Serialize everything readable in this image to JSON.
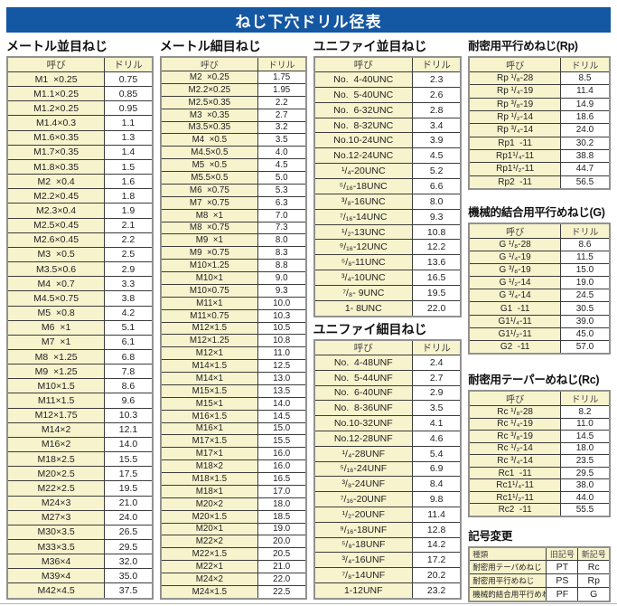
{
  "title": "ねじ下穴ドリル径表",
  "labels": {
    "name_col": "呼び",
    "drill_col": "ドリル"
  },
  "colors": {
    "title_bar_blue": "#1457a2",
    "cell_cream": "#f7f3cd",
    "grid_line": "#3c3c3c",
    "outer_border": "#919191"
  },
  "sections": {
    "metric_coarse": {
      "heading": "メートル並目ねじ",
      "rows": [
        [
          "M1  ×0.25",
          "0.75"
        ],
        [
          "M1.1×0.25",
          "0.85"
        ],
        [
          "M1.2×0.25",
          "0.95"
        ],
        [
          "M1.4×0.3",
          "1.1"
        ],
        [
          "M1.6×0.35",
          "1.3"
        ],
        [
          "M1.7×0.35",
          "1.4"
        ],
        [
          "M1.8×0.35",
          "1.5"
        ],
        [
          "M2  ×0.4",
          "1.6"
        ],
        [
          "M2.2×0.45",
          "1.8"
        ],
        [
          "M2.3×0.4",
          "1.9"
        ],
        [
          "M2.5×0.45",
          "2.1"
        ],
        [
          "M2.6×0.45",
          "2.2"
        ],
        [
          "M3  ×0.5",
          "2.5"
        ],
        [
          "M3.5×0.6",
          "2.9"
        ],
        [
          "M4  ×0.7",
          "3.3"
        ],
        [
          "M4.5×0.75",
          "3.8"
        ],
        [
          "M5  ×0.8",
          "4.2"
        ],
        [
          "M6  ×1",
          "5.1"
        ],
        [
          "M7  ×1",
          "6.1"
        ],
        [
          "M8  ×1.25",
          "6.8"
        ],
        [
          "M9  ×1.25",
          "7.8"
        ],
        [
          "M10×1.5",
          "8.6"
        ],
        [
          "M11×1.5",
          "9.6"
        ],
        [
          "M12×1.75",
          "10.3"
        ],
        [
          "M14×2",
          "12.1"
        ],
        [
          "M16×2",
          "14.0"
        ],
        [
          "M18×2.5",
          "15.5"
        ],
        [
          "M20×2.5",
          "17.5"
        ],
        [
          "M22×2.5",
          "19.5"
        ],
        [
          "M24×3",
          "21.0"
        ],
        [
          "M27×3",
          "24.0"
        ],
        [
          "M30×3.5",
          "26.5"
        ],
        [
          "M33×3.5",
          "29.5"
        ],
        [
          "M36×4",
          "32.0"
        ],
        [
          "M39×4",
          "35.0"
        ],
        [
          "M42×4.5",
          "37.5"
        ]
      ]
    },
    "metric_fine": {
      "heading": "メートル細目ねじ",
      "rows": [
        [
          "M2  ×0.25",
          "1.75"
        ],
        [
          "M2.2×0.25",
          "1.95"
        ],
        [
          "M2.5×0.35",
          "2.2"
        ],
        [
          "M3  ×0.35",
          "2.7"
        ],
        [
          "M3.5×0.35",
          "3.2"
        ],
        [
          "M4  ×0.5",
          "3.5"
        ],
        [
          "M4.5×0.5",
          "4.0"
        ],
        [
          "M5  ×0.5",
          "4.5"
        ],
        [
          "M5.5×0.5",
          "5.0"
        ],
        [
          "M6  ×0.75",
          "5.3"
        ],
        [
          "M7  ×0.75",
          "6.3"
        ],
        [
          "M8  ×1",
          "7.0"
        ],
        [
          "M8  ×0.75",
          "7.3"
        ],
        [
          "M9  ×1",
          "8.0"
        ],
        [
          "M9  ×0.75",
          "8.3"
        ],
        [
          "M10×1.25",
          "8.8"
        ],
        [
          "M10×1",
          "9.0"
        ],
        [
          "M10×0.75",
          "9.3"
        ],
        [
          "M11×1",
          "10.0"
        ],
        [
          "M11×0.75",
          "10.3"
        ],
        [
          "M12×1.5",
          "10.5"
        ],
        [
          "M12×1.25",
          "10.8"
        ],
        [
          "M12×1",
          "11.0"
        ],
        [
          "M14×1.5",
          "12.5"
        ],
        [
          "M14×1",
          "13.0"
        ],
        [
          "M15×1.5",
          "13.5"
        ],
        [
          "M15×1",
          "14.0"
        ],
        [
          "M16×1.5",
          "14.5"
        ],
        [
          "M16×1",
          "15.0"
        ],
        [
          "M17×1.5",
          "15.5"
        ],
        [
          "M17×1",
          "16.0"
        ],
        [
          "M18×2",
          "16.0"
        ],
        [
          "M18×1.5",
          "16.5"
        ],
        [
          "M18×1",
          "17.0"
        ],
        [
          "M20×2",
          "18.0"
        ],
        [
          "M20×1.5",
          "18.5"
        ],
        [
          "M20×1",
          "19.0"
        ],
        [
          "M22×2",
          "20.0"
        ],
        [
          "M22×1.5",
          "20.5"
        ],
        [
          "M22×1",
          "21.0"
        ],
        [
          "M24×2",
          "22.0"
        ],
        [
          "M24×1.5",
          "22.5"
        ]
      ]
    },
    "unified_coarse": {
      "heading": "ユニファイ並目ねじ",
      "rows": [
        [
          "No.  4-40UNC",
          "2.3"
        ],
        [
          "No.  5-40UNC",
          "2.6"
        ],
        [
          "No.  6-32UNC",
          "2.8"
        ],
        [
          "No.  8-32UNC",
          "3.4"
        ],
        [
          "No.10-24UNC",
          "3.9"
        ],
        [
          "No.12-24UNC",
          "4.5"
        ],
        [
          "¹/₄-20UNC",
          "5.2"
        ],
        [
          "⁵/₁₆-18UNC",
          "6.6"
        ],
        [
          "³/₈-16UNC",
          "8.0"
        ],
        [
          "⁷/₁₆-14UNC",
          "9.3"
        ],
        [
          "¹/₂-13UNC",
          "10.8"
        ],
        [
          "⁹/₁₆-12UNC",
          "12.2"
        ],
        [
          "⁵/₈-11UNC",
          "13.6"
        ],
        [
          "³/₄-10UNC",
          "16.5"
        ],
        [
          "⁷/₈- 9UNC",
          "19.5"
        ],
        [
          "1- 8UNC",
          "22.0"
        ]
      ]
    },
    "unified_fine": {
      "heading": "ユニファイ細目ねじ",
      "rows": [
        [
          "No.  4-48UNF",
          "2.4"
        ],
        [
          "No.  5-44UNF",
          "2.7"
        ],
        [
          "No.  6-40UNF",
          "2.9"
        ],
        [
          "No.  8-36UNF",
          "3.5"
        ],
        [
          "No.10-32UNF",
          "4.1"
        ],
        [
          "No.12-28UNF",
          "4.6"
        ],
        [
          "¹/₄-28UNF",
          "5.4"
        ],
        [
          "⁵/₁₆-24UNF",
          "6.9"
        ],
        [
          "³/₈-24UNF",
          "8.4"
        ],
        [
          "⁷/₁₆-20UNF",
          "9.8"
        ],
        [
          "¹/₂-20UNF",
          "11.4"
        ],
        [
          "⁹/₁₆-18UNF",
          "12.8"
        ],
        [
          "⁵/₈-18UNF",
          "14.2"
        ],
        [
          "³/₄-16UNF",
          "17.2"
        ],
        [
          "⁷/₈-14UNF",
          "20.2"
        ],
        [
          "1-12UNF",
          "23.2"
        ]
      ]
    },
    "rp": {
      "heading": "耐密用平行めねじ(Rp)",
      "rows": [
        [
          "Rp ¹/₈-28",
          "8.5"
        ],
        [
          "Rp ¹/₄-19",
          "11.4"
        ],
        [
          "Rp ³/₈-19",
          "14.9"
        ],
        [
          "Rp ¹/₂-14",
          "18.6"
        ],
        [
          "Rp ³/₄-14",
          "24.0"
        ],
        [
          "Rp1  -11",
          "30.2"
        ],
        [
          "Rp1¹/₄-11",
          "38.8"
        ],
        [
          "Rp1¹/₂-11",
          "44.7"
        ],
        [
          "Rp2  -11",
          "56.5"
        ]
      ]
    },
    "g": {
      "heading": "機械的結合用平行めねじ(G)",
      "rows": [
        [
          "G ¹/₈-28",
          "8.6"
        ],
        [
          "G ¹/₄-19",
          "11.5"
        ],
        [
          "G ³/₈-19",
          "15.0"
        ],
        [
          "G ¹/₂-14",
          "19.0"
        ],
        [
          "G ³/₄-14",
          "24.5"
        ],
        [
          "G1  -11",
          "30.5"
        ],
        [
          "G1¹/₄-11",
          "39.0"
        ],
        [
          "G1¹/₂-11",
          "45.0"
        ],
        [
          "G2  -11",
          "57.0"
        ]
      ]
    },
    "rc": {
      "heading": "耐密用テーパーめねじ(Rc)",
      "rows": [
        [
          "Rc ¹/₈-28",
          "8.2"
        ],
        [
          "Rc ¹/₄-19",
          "11.0"
        ],
        [
          "Rc ³/₈-19",
          "14.5"
        ],
        [
          "Rc ¹/₂-14",
          "18.0"
        ],
        [
          "Rc ³/₄-14",
          "23.5"
        ],
        [
          "Rc1  -11",
          "29.5"
        ],
        [
          "Rc1¹/₄-11",
          "38.0"
        ],
        [
          "Rc1¹/₂-11",
          "44.0"
        ],
        [
          "Rc2  -11",
          "55.5"
        ]
      ]
    },
    "symbol_change": {
      "heading": "記号変更",
      "headers": [
        "種類",
        "旧記号",
        "新記号"
      ],
      "rows": [
        [
          "耐密用テーパめねじ",
          "PT",
          "Rc"
        ],
        [
          "耐密用平行めねじ",
          "PS",
          "Rp"
        ],
        [
          "機械的結合用平行めねじ",
          "PF",
          "G"
        ]
      ]
    }
  }
}
